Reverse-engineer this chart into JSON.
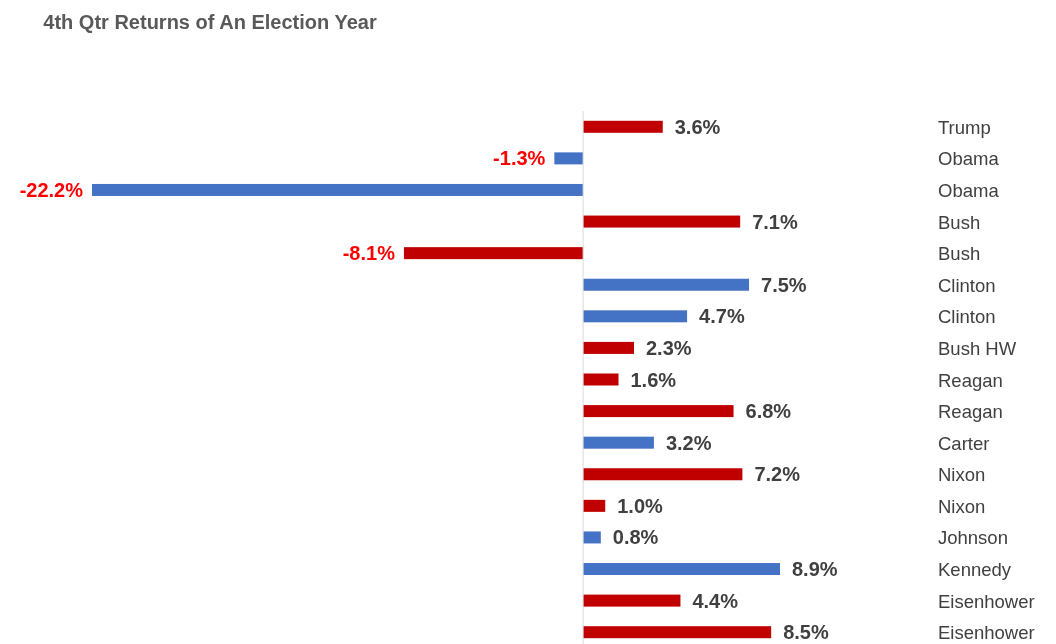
{
  "chart_data": {
    "type": "bar",
    "orientation": "horizontal",
    "title": "4th Qtr Returns of An Election Year",
    "categories": [
      "Trump",
      "Obama",
      "Obama",
      "Bush",
      "Bush",
      "Clinton",
      "Clinton",
      "Bush HW",
      "Reagan",
      "Reagan",
      "Carter",
      "Nixon",
      "Nixon",
      "Johnson",
      "Kennedy",
      "Eisenhower",
      "Eisenhower"
    ],
    "values": [
      3.6,
      -1.3,
      -22.2,
      7.1,
      -8.1,
      7.5,
      4.7,
      2.3,
      1.6,
      6.8,
      3.2,
      7.2,
      1.0,
      0.8,
      8.9,
      4.4,
      8.5
    ],
    "colors": [
      "#c00000",
      "#4472c4",
      "#4472c4",
      "#c00000",
      "#c00000",
      "#4472c4",
      "#4472c4",
      "#c00000",
      "#c00000",
      "#c00000",
      "#4472c4",
      "#c00000",
      "#c00000",
      "#4472c4",
      "#4472c4",
      "#c00000",
      "#c00000"
    ],
    "value_labels": [
      "3.6%",
      "-1.3%",
      "-22.2%",
      "7.1%",
      "-8.1%",
      "7.5%",
      "4.7%",
      "2.3%",
      "1.6%",
      "6.8%",
      "3.2%",
      "7.2%",
      "1.0%",
      "0.8%",
      "8.9%",
      "4.4%",
      "8.5%"
    ]
  }
}
